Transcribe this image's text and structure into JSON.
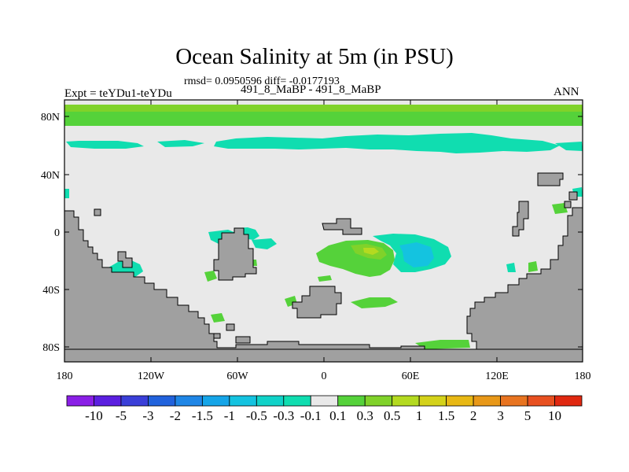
{
  "title": "Ocean Salinity at 5m (in PSU)",
  "subtitle": "rmsd= 0.0950596 diff= -0.0177193",
  "left_label": "Expt = teYDu1-teYDu",
  "center_label": "491_8_MaBP - 491_8_MaBP",
  "right_label": "ANN",
  "map": {
    "lon_ticks": [
      "180",
      "120W",
      "60W",
      "0",
      "60E",
      "120E",
      "180"
    ],
    "lat_ticks": [
      "80N",
      "40N",
      "0",
      "40S",
      "80S"
    ]
  },
  "colorbar": {
    "labels": [
      "-10",
      "-5",
      "-3",
      "-2",
      "-1.5",
      "-1",
      "-0.5",
      "-0.3",
      "-0.1",
      "0.1",
      "0.3",
      "0.5",
      "1",
      "1.5",
      "2",
      "3",
      "5",
      "10"
    ],
    "colors": [
      "#8a1fe6",
      "#5b1fe0",
      "#3a3fd8",
      "#2162dc",
      "#1f86e6",
      "#15a5e8",
      "#14c3e0",
      "#10d2c8",
      "#10ddb0",
      "#e9e9e9",
      "#55d23a",
      "#80d22a",
      "#b4da20",
      "#d4d21a",
      "#e8b814",
      "#e89818",
      "#e87420",
      "#e85020",
      "#e02810"
    ]
  },
  "colors": {
    "land": "#a0a0a0",
    "ocean_neutral": "#e9e9e9",
    "positive_small": "#55d23a",
    "positive_mid": "#80d22a",
    "positive_large": "#b4da20",
    "negative_small": "#10ddb0",
    "negative_mid": "#14c3e0"
  }
}
